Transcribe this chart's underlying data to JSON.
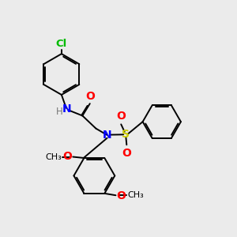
{
  "background_color": "#ebebeb",
  "bond_color": "#000000",
  "atom_colors": {
    "Cl": "#00bb00",
    "N": "#0000ff",
    "O": "#ff0000",
    "S": "#cccc00",
    "H": "#777777",
    "C": "#000000"
  },
  "bond_width": 1.4,
  "font_size": 8.5
}
